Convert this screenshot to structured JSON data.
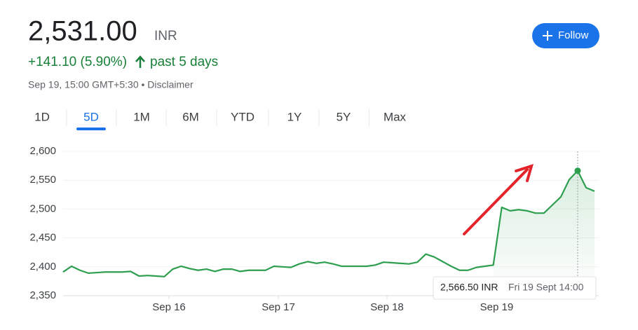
{
  "header": {
    "price": "2,531.00",
    "currency": "INR",
    "change": "+141.10 (5.90%)",
    "period": "past 5 days",
    "timestamp": "Sep 19, 15:00 GMT+5:30 • Disclaimer",
    "follow": "Follow"
  },
  "tabs": [
    "1D",
    "5D",
    "1M",
    "6M",
    "YTD",
    "1Y",
    "5Y",
    "Max"
  ],
  "chart_data": {
    "type": "line",
    "color": "#2e9e4f",
    "values": [
      2391,
      2401,
      2394,
      2389,
      2390,
      2391,
      2391,
      2391,
      2392,
      2384,
      2385,
      2384,
      2383,
      2396,
      2401,
      2397,
      2394,
      2396,
      2392,
      2396,
      2396,
      2392,
      2394,
      2394,
      2394,
      2401,
      2400,
      2399,
      2405,
      2409,
      2406,
      2408,
      2405,
      2401,
      2401,
      2401,
      2401,
      2403,
      2408,
      2407,
      2406,
      2405,
      2408,
      2422,
      2417,
      2409,
      2401,
      2394,
      2394,
      2399,
      2401,
      2403,
      2503,
      2497,
      2499,
      2497,
      2493,
      2493,
      2507,
      2521,
      2551,
      2566.5,
      2537,
      2531
    ],
    "xlim": [
      0,
      63
    ],
    "xticks": [
      {
        "value": 12.55,
        "label": "Sep 16"
      },
      {
        "value": 25.52,
        "label": "Sep 17"
      },
      {
        "value": 38.4,
        "label": "Sep 18"
      },
      {
        "value": 51.4,
        "label": "Sep 19"
      }
    ],
    "ylim": [
      2350,
      2600
    ],
    "yticks": [
      {
        "value": 2350,
        "label": "2,350"
      },
      {
        "value": 2400,
        "label": "2,400"
      },
      {
        "value": 2450,
        "label": "2,450"
      },
      {
        "value": 2500,
        "label": "2,500"
      },
      {
        "value": 2550,
        "label": "2,550"
      },
      {
        "value": 2600,
        "label": "2,600"
      }
    ],
    "grid": true,
    "tooltip": {
      "index": 61,
      "value": "2,566.50 INR",
      "time": "Fri 19 Sept 14:00"
    }
  }
}
